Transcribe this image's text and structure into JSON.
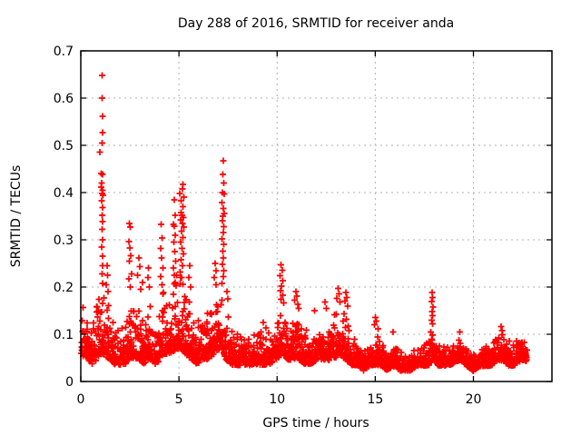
{
  "window": {
    "background": "#ffffff"
  },
  "chart_data": {
    "type": "scatter",
    "title": "Day 288 of 2016, SRMTID for receiver anda",
    "xlabel": "GPS time / hours",
    "ylabel": "SRMTID / TECUs",
    "xlim": [
      0,
      24
    ],
    "ylim": [
      0,
      0.7
    ],
    "xticks": [
      0,
      5,
      10,
      15,
      20
    ],
    "xtick_labels": [
      "0",
      "5",
      "10",
      "15",
      "20"
    ],
    "yticks": [
      0,
      0.1,
      0.2,
      0.3,
      0.4,
      0.5,
      0.6,
      0.7
    ],
    "ytick_labels": [
      "0",
      "0.1",
      "0.2",
      "0.3",
      "0.4",
      "0.5",
      "0.6",
      "0.7"
    ],
    "grid": true,
    "grid_color": "#b0b0b0",
    "axis_color": "#000000",
    "legend": "none",
    "marker": {
      "shape": "plus",
      "color": "#ff0000",
      "size": 7
    },
    "x_data_start": 0.03,
    "x_data_end": 22.75,
    "n_band_points": 2300,
    "seed": 1288,
    "band_envelope_anchors": [
      [
        0.0,
        0.05,
        0.17
      ],
      [
        0.3,
        0.04,
        0.19
      ],
      [
        0.6,
        0.03,
        0.13
      ],
      [
        0.9,
        0.04,
        0.22
      ],
      [
        1.1,
        0.05,
        0.2
      ],
      [
        1.4,
        0.04,
        0.18
      ],
      [
        1.7,
        0.03,
        0.14
      ],
      [
        2.0,
        0.03,
        0.12
      ],
      [
        2.3,
        0.03,
        0.15
      ],
      [
        2.6,
        0.04,
        0.19
      ],
      [
        2.9,
        0.04,
        0.18
      ],
      [
        3.2,
        0.03,
        0.16
      ],
      [
        3.5,
        0.04,
        0.18
      ],
      [
        3.8,
        0.03,
        0.14
      ],
      [
        4.1,
        0.04,
        0.19
      ],
      [
        4.4,
        0.05,
        0.21
      ],
      [
        4.7,
        0.05,
        0.23
      ],
      [
        5.0,
        0.06,
        0.24
      ],
      [
        5.3,
        0.05,
        0.22
      ],
      [
        5.6,
        0.04,
        0.17
      ],
      [
        5.9,
        0.03,
        0.13
      ],
      [
        6.2,
        0.04,
        0.15
      ],
      [
        6.5,
        0.04,
        0.17
      ],
      [
        6.8,
        0.05,
        0.19
      ],
      [
        7.1,
        0.06,
        0.24
      ],
      [
        7.4,
        0.04,
        0.16
      ],
      [
        7.7,
        0.03,
        0.12
      ],
      [
        8.0,
        0.03,
        0.1
      ],
      [
        8.4,
        0.03,
        0.11
      ],
      [
        8.8,
        0.03,
        0.1
      ],
      [
        9.2,
        0.03,
        0.12
      ],
      [
        9.6,
        0.03,
        0.11
      ],
      [
        10.0,
        0.04,
        0.14
      ],
      [
        10.25,
        0.05,
        0.17
      ],
      [
        10.5,
        0.04,
        0.15
      ],
      [
        10.8,
        0.04,
        0.14
      ],
      [
        11.1,
        0.04,
        0.15
      ],
      [
        11.4,
        0.03,
        0.12
      ],
      [
        11.7,
        0.03,
        0.12
      ],
      [
        12.0,
        0.04,
        0.13
      ],
      [
        12.3,
        0.04,
        0.14
      ],
      [
        12.6,
        0.04,
        0.12
      ],
      [
        12.9,
        0.04,
        0.15
      ],
      [
        13.2,
        0.05,
        0.16
      ],
      [
        13.5,
        0.04,
        0.15
      ],
      [
        13.8,
        0.03,
        0.11
      ],
      [
        14.1,
        0.03,
        0.09
      ],
      [
        14.4,
        0.02,
        0.07
      ],
      [
        14.7,
        0.03,
        0.08
      ],
      [
        15.0,
        0.03,
        0.11
      ],
      [
        15.3,
        0.03,
        0.09
      ],
      [
        15.6,
        0.02,
        0.07
      ],
      [
        15.9,
        0.03,
        0.09
      ],
      [
        16.2,
        0.02,
        0.08
      ],
      [
        16.5,
        0.02,
        0.06
      ],
      [
        16.8,
        0.02,
        0.07
      ],
      [
        17.1,
        0.03,
        0.08
      ],
      [
        17.4,
        0.03,
        0.08
      ],
      [
        17.7,
        0.03,
        0.1
      ],
      [
        17.95,
        0.04,
        0.13
      ],
      [
        18.2,
        0.03,
        0.09
      ],
      [
        18.5,
        0.03,
        0.08
      ],
      [
        18.8,
        0.03,
        0.08
      ],
      [
        19.1,
        0.04,
        0.09
      ],
      [
        19.4,
        0.04,
        0.1
      ],
      [
        19.7,
        0.03,
        0.07
      ],
      [
        20.0,
        0.02,
        0.06
      ],
      [
        20.3,
        0.03,
        0.07
      ],
      [
        20.6,
        0.03,
        0.08
      ],
      [
        20.9,
        0.03,
        0.08
      ],
      [
        21.2,
        0.04,
        0.1
      ],
      [
        21.5,
        0.04,
        0.11
      ],
      [
        21.8,
        0.03,
        0.09
      ],
      [
        22.1,
        0.03,
        0.09
      ],
      [
        22.4,
        0.04,
        0.1
      ],
      [
        22.7,
        0.04,
        0.09
      ]
    ],
    "flier_points": [
      [
        1.08,
        0.648
      ],
      [
        1.09,
        0.6
      ],
      [
        1.1,
        0.562
      ],
      [
        1.1,
        0.527
      ],
      [
        1.08,
        0.505
      ],
      [
        0.98,
        0.486
      ],
      [
        1.03,
        0.44
      ],
      [
        1.1,
        0.438
      ],
      [
        1.06,
        0.42
      ],
      [
        1.04,
        0.412
      ],
      [
        1.12,
        0.405
      ],
      [
        1.09,
        0.398
      ],
      [
        1.14,
        0.394
      ],
      [
        1.07,
        0.383
      ],
      [
        1.1,
        0.368
      ],
      [
        1.08,
        0.352
      ],
      [
        1.12,
        0.338
      ],
      [
        1.09,
        0.322
      ],
      [
        1.11,
        0.3
      ],
      [
        1.07,
        0.285
      ],
      [
        1.1,
        0.265
      ],
      [
        1.12,
        0.245
      ],
      [
        1.08,
        0.228
      ],
      [
        1.1,
        0.208
      ],
      [
        1.33,
        0.245
      ],
      [
        1.36,
        0.225
      ],
      [
        1.3,
        0.205
      ],
      [
        1.38,
        0.19
      ],
      [
        2.47,
        0.335
      ],
      [
        2.52,
        0.327
      ],
      [
        2.44,
        0.296
      ],
      [
        2.5,
        0.283
      ],
      [
        2.55,
        0.266
      ],
      [
        2.48,
        0.255
      ],
      [
        2.58,
        0.228
      ],
      [
        2.45,
        0.217
      ],
      [
        2.52,
        0.2
      ],
      [
        2.95,
        0.262
      ],
      [
        3.0,
        0.243
      ],
      [
        2.9,
        0.225
      ],
      [
        3.15,
        0.21
      ],
      [
        3.05,
        0.195
      ],
      [
        3.45,
        0.24
      ],
      [
        3.42,
        0.22
      ],
      [
        3.5,
        0.2
      ],
      [
        4.1,
        0.333
      ],
      [
        4.15,
        0.304
      ],
      [
        4.06,
        0.282
      ],
      [
        4.12,
        0.262
      ],
      [
        4.18,
        0.24
      ],
      [
        4.08,
        0.222
      ],
      [
        4.14,
        0.205
      ],
      [
        4.77,
        0.385
      ],
      [
        4.8,
        0.352
      ],
      [
        4.72,
        0.333
      ],
      [
        4.76,
        0.329
      ],
      [
        4.82,
        0.31
      ],
      [
        4.74,
        0.295
      ],
      [
        4.79,
        0.275
      ],
      [
        4.84,
        0.255
      ],
      [
        4.71,
        0.24
      ],
      [
        4.77,
        0.225
      ],
      [
        4.81,
        0.21
      ],
      [
        5.21,
        0.417
      ],
      [
        5.17,
        0.408
      ],
      [
        5.05,
        0.398
      ],
      [
        5.24,
        0.39
      ],
      [
        5.12,
        0.383
      ],
      [
        5.2,
        0.37
      ],
      [
        5.1,
        0.358
      ],
      [
        5.16,
        0.352
      ],
      [
        5.22,
        0.347
      ],
      [
        5.08,
        0.342
      ],
      [
        5.18,
        0.335
      ],
      [
        5.25,
        0.327
      ],
      [
        5.13,
        0.318
      ],
      [
        5.2,
        0.305
      ],
      [
        5.09,
        0.295
      ],
      [
        5.15,
        0.282
      ],
      [
        5.23,
        0.27
      ],
      [
        5.11,
        0.258
      ],
      [
        5.18,
        0.245
      ],
      [
        5.06,
        0.232
      ],
      [
        5.14,
        0.22
      ],
      [
        5.21,
        0.206
      ],
      [
        5.55,
        0.245
      ],
      [
        5.5,
        0.22
      ],
      [
        5.6,
        0.2
      ],
      [
        6.85,
        0.25
      ],
      [
        6.9,
        0.235
      ],
      [
        6.8,
        0.22
      ],
      [
        6.88,
        0.205
      ],
      [
        7.27,
        0.467
      ],
      [
        7.24,
        0.438
      ],
      [
        7.28,
        0.42
      ],
      [
        7.21,
        0.4
      ],
      [
        7.3,
        0.397
      ],
      [
        7.19,
        0.379
      ],
      [
        7.26,
        0.366
      ],
      [
        7.3,
        0.356
      ],
      [
        7.24,
        0.35
      ],
      [
        7.21,
        0.34
      ],
      [
        7.28,
        0.328
      ],
      [
        7.25,
        0.315
      ],
      [
        7.2,
        0.302
      ],
      [
        7.29,
        0.29
      ],
      [
        7.23,
        0.276
      ],
      [
        7.26,
        0.262
      ],
      [
        7.22,
        0.248
      ],
      [
        7.28,
        0.235
      ],
      [
        7.25,
        0.222
      ],
      [
        7.2,
        0.208
      ],
      [
        7.45,
        0.19
      ],
      [
        7.5,
        0.175
      ],
      [
        9.3,
        0.125
      ],
      [
        10.2,
        0.247
      ],
      [
        10.26,
        0.236
      ],
      [
        10.14,
        0.224
      ],
      [
        10.3,
        0.213
      ],
      [
        10.22,
        0.202
      ],
      [
        10.17,
        0.192
      ],
      [
        10.28,
        0.183
      ],
      [
        10.2,
        0.174
      ],
      [
        10.34,
        0.166
      ],
      [
        10.95,
        0.19
      ],
      [
        11.0,
        0.181
      ],
      [
        10.9,
        0.172
      ],
      [
        11.05,
        0.163
      ],
      [
        11.1,
        0.155
      ],
      [
        11.9,
        0.15
      ],
      [
        12.45,
        0.168
      ],
      [
        12.5,
        0.155
      ],
      [
        13.1,
        0.197
      ],
      [
        13.15,
        0.186
      ],
      [
        13.05,
        0.176
      ],
      [
        13.2,
        0.168
      ],
      [
        13.5,
        0.188
      ],
      [
        13.55,
        0.178
      ],
      [
        13.45,
        0.17
      ],
      [
        13.6,
        0.16
      ],
      [
        15.0,
        0.136
      ],
      [
        15.05,
        0.128
      ],
      [
        14.95,
        0.12
      ],
      [
        15.15,
        0.112
      ],
      [
        15.9,
        0.105
      ],
      [
        17.9,
        0.188
      ],
      [
        17.92,
        0.178
      ],
      [
        17.87,
        0.169
      ],
      [
        17.94,
        0.158
      ],
      [
        17.9,
        0.148
      ],
      [
        17.93,
        0.139
      ],
      [
        17.88,
        0.13
      ],
      [
        17.91,
        0.122
      ],
      [
        19.3,
        0.105
      ],
      [
        21.4,
        0.116
      ],
      [
        21.45,
        0.108
      ]
    ]
  }
}
